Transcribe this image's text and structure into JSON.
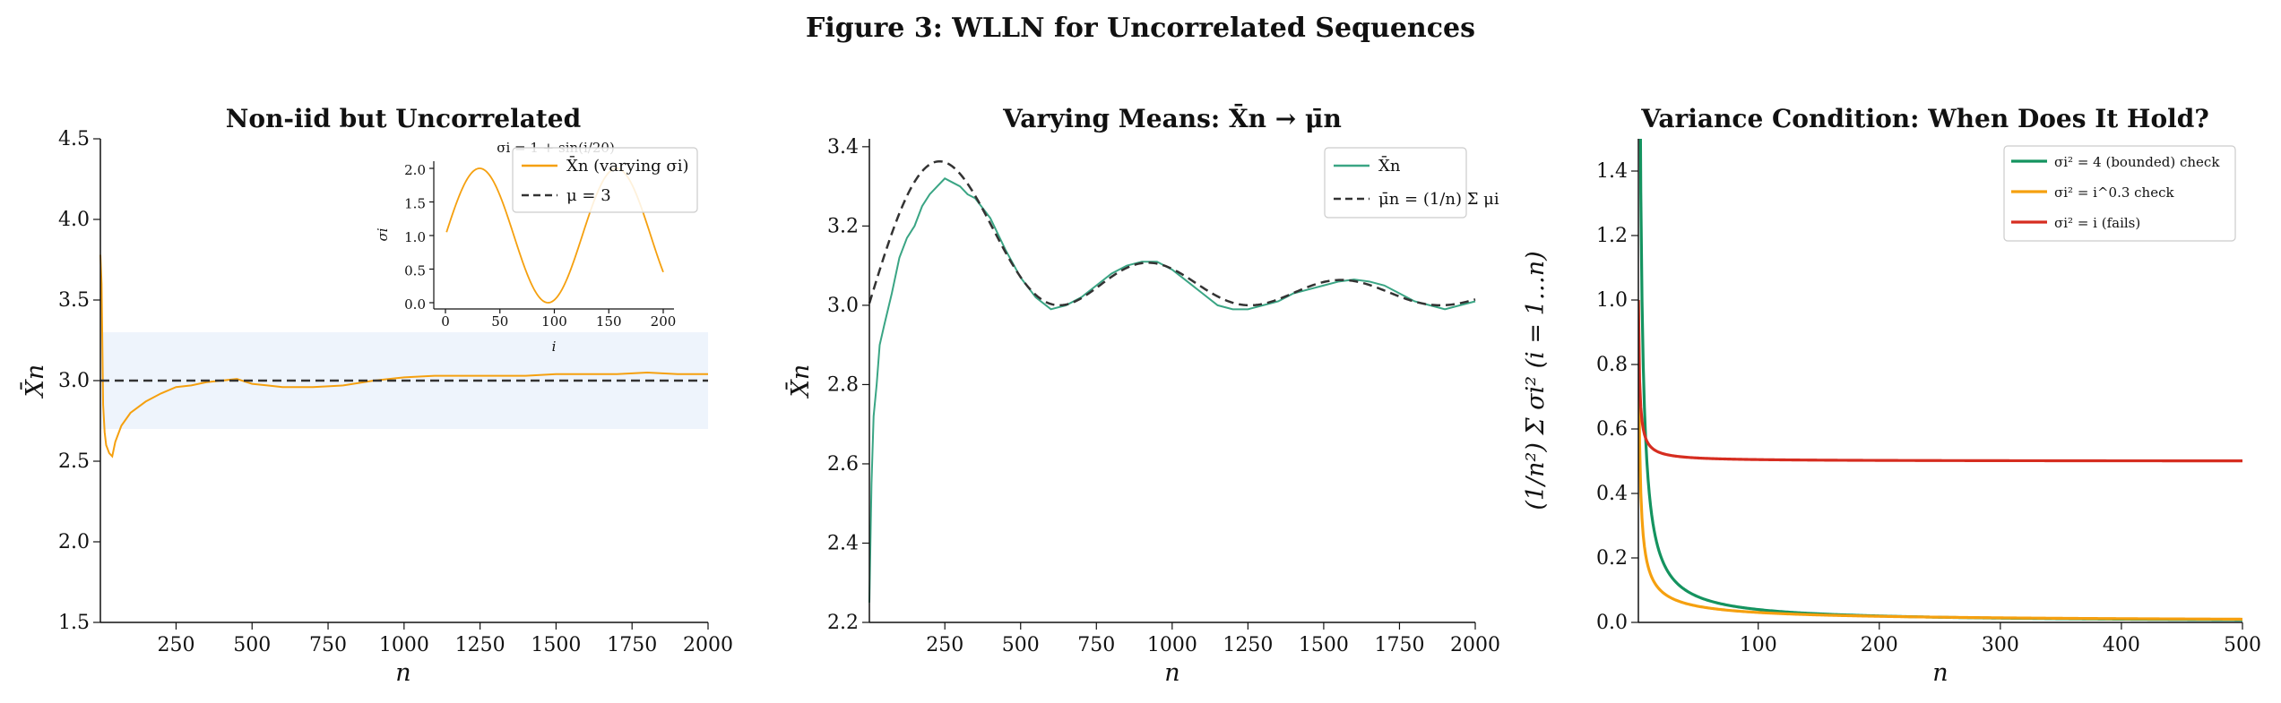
{
  "figure": {
    "title": "Figure 3: WLLN for Uncorrelated Sequences"
  },
  "chart_data": [
    {
      "type": "line",
      "title": "Non-iid but Uncorrelated",
      "xlabel": "n",
      "ylabel": "X̄n",
      "xlim": [
        1,
        2000
      ],
      "ylim": [
        1.5,
        4.5
      ],
      "xticks": [
        "250",
        "500",
        "750",
        "1000",
        "1250",
        "1500",
        "1750",
        "2000"
      ],
      "yticks": [
        "1.5",
        "2.0",
        "2.5",
        "3.0",
        "3.5",
        "4.0",
        "4.5"
      ],
      "band": {
        "y_low": 2.7,
        "y_high": 3.3,
        "color": "#eef4fc"
      },
      "series": [
        {
          "name": "X̄n (varying σi)",
          "color": "#f5a00f",
          "points": [
            [
              1,
              3.78
            ],
            [
              5,
              3.6
            ],
            [
              10,
              2.85
            ],
            [
              15,
              2.68
            ],
            [
              20,
              2.6
            ],
            [
              30,
              2.55
            ],
            [
              40,
              2.53
            ],
            [
              50,
              2.62
            ],
            [
              70,
              2.72
            ],
            [
              100,
              2.8
            ],
            [
              150,
              2.87
            ],
            [
              200,
              2.92
            ],
            [
              250,
              2.96
            ],
            [
              300,
              2.97
            ],
            [
              350,
              2.99
            ],
            [
              400,
              3.0
            ],
            [
              450,
              3.01
            ],
            [
              500,
              2.98
            ],
            [
              550,
              2.97
            ],
            [
              600,
              2.96
            ],
            [
              700,
              2.96
            ],
            [
              800,
              2.97
            ],
            [
              900,
              3.0
            ],
            [
              1000,
              3.02
            ],
            [
              1100,
              3.03
            ],
            [
              1200,
              3.03
            ],
            [
              1300,
              3.03
            ],
            [
              1400,
              3.03
            ],
            [
              1500,
              3.04
            ],
            [
              1600,
              3.04
            ],
            [
              1700,
              3.04
            ],
            [
              1800,
              3.05
            ],
            [
              1900,
              3.04
            ],
            [
              2000,
              3.04
            ]
          ]
        },
        {
          "name": "μ = 3",
          "color": "#333333",
          "dashed": true,
          "points": [
            [
              1,
              3
            ],
            [
              2000,
              3
            ]
          ]
        }
      ],
      "legend": "top-right",
      "inset": {
        "title": "σi = 1 + sin(i/20)",
        "xlabel": "i",
        "ylabel": "σi",
        "xlim": [
          0,
          200
        ],
        "ylim": [
          0,
          2
        ],
        "xticks": [
          "0",
          "50",
          "100",
          "150",
          "200"
        ],
        "yticks": [
          "0.0",
          "0.5",
          "1.0",
          "1.5",
          "2.0"
        ],
        "color": "#f5a00f",
        "formula": "1 + sin(i/20)"
      }
    },
    {
      "type": "line",
      "title": "Varying Means: X̄n → μ̄n",
      "xlabel": "n",
      "ylabel": "X̄n",
      "xlim": [
        1,
        2000
      ],
      "ylim": [
        2.2,
        3.42
      ],
      "xticks": [
        "250",
        "500",
        "750",
        "1000",
        "1250",
        "1500",
        "1750",
        "2000"
      ],
      "yticks": [
        "2.2",
        "2.4",
        "2.6",
        "2.8",
        "3.0",
        "3.2",
        "3.4"
      ],
      "series": [
        {
          "name": "X̄n",
          "color": "#3aa584",
          "points": [
            [
              1,
              2.25
            ],
            [
              8,
              2.55
            ],
            [
              15,
              2.72
            ],
            [
              25,
              2.8
            ],
            [
              35,
              2.9
            ],
            [
              50,
              2.95
            ],
            [
              75,
              3.03
            ],
            [
              100,
              3.12
            ],
            [
              125,
              3.17
            ],
            [
              150,
              3.2
            ],
            [
              175,
              3.25
            ],
            [
              200,
              3.28
            ],
            [
              225,
              3.3
            ],
            [
              250,
              3.32
            ],
            [
              275,
              3.31
            ],
            [
              300,
              3.3
            ],
            [
              325,
              3.28
            ],
            [
              350,
              3.27
            ],
            [
              400,
              3.22
            ],
            [
              450,
              3.14
            ],
            [
              500,
              3.07
            ],
            [
              550,
              3.02
            ],
            [
              600,
              2.99
            ],
            [
              650,
              3.0
            ],
            [
              700,
              3.02
            ],
            [
              750,
              3.05
            ],
            [
              800,
              3.08
            ],
            [
              850,
              3.1
            ],
            [
              900,
              3.11
            ],
            [
              950,
              3.11
            ],
            [
              1000,
              3.09
            ],
            [
              1050,
              3.06
            ],
            [
              1100,
              3.03
            ],
            [
              1150,
              3.0
            ],
            [
              1200,
              2.99
            ],
            [
              1250,
              2.99
            ],
            [
              1300,
              3.0
            ],
            [
              1350,
              3.01
            ],
            [
              1400,
              3.03
            ],
            [
              1450,
              3.04
            ],
            [
              1500,
              3.05
            ],
            [
              1550,
              3.06
            ],
            [
              1600,
              3.065
            ],
            [
              1650,
              3.06
            ],
            [
              1700,
              3.05
            ],
            [
              1750,
              3.03
            ],
            [
              1800,
              3.01
            ],
            [
              1850,
              3.0
            ],
            [
              1900,
              2.99
            ],
            [
              1950,
              3.0
            ],
            [
              2000,
              3.01
            ]
          ]
        },
        {
          "name": "μ̄n = (1/n) Σ μi",
          "color": "#333333",
          "dashed": true,
          "formula": "cumulative mean of 3 + 0.5·sin(i/100)"
        }
      ],
      "legend": "top-right"
    },
    {
      "type": "line",
      "title": "Variance Condition: When Does It Hold?",
      "xlabel": "n",
      "ylabel": "(1/n²) Σ σi²  (i = 1…n)",
      "xlim": [
        1,
        500
      ],
      "ylim": [
        0,
        1.5
      ],
      "xticks": [
        "100",
        "200",
        "300",
        "400",
        "500"
      ],
      "yticks": [
        "0.0",
        "0.2",
        "0.4",
        "0.6",
        "0.8",
        "1.0",
        "1.2",
        "1.4"
      ],
      "series": [
        {
          "name": "σi² = 4 (bounded) check",
          "color": "#14935f",
          "formula": "4/n"
        },
        {
          "name": "σi² = i^0.3 check",
          "color": "#f5a00f",
          "formula": "(1/n²) Σ i^0.3"
        },
        {
          "name": "σi² = i (fails)",
          "color": "#d62d20",
          "formula": "(n+1)/(2n)"
        }
      ],
      "legend": "top-right"
    }
  ]
}
